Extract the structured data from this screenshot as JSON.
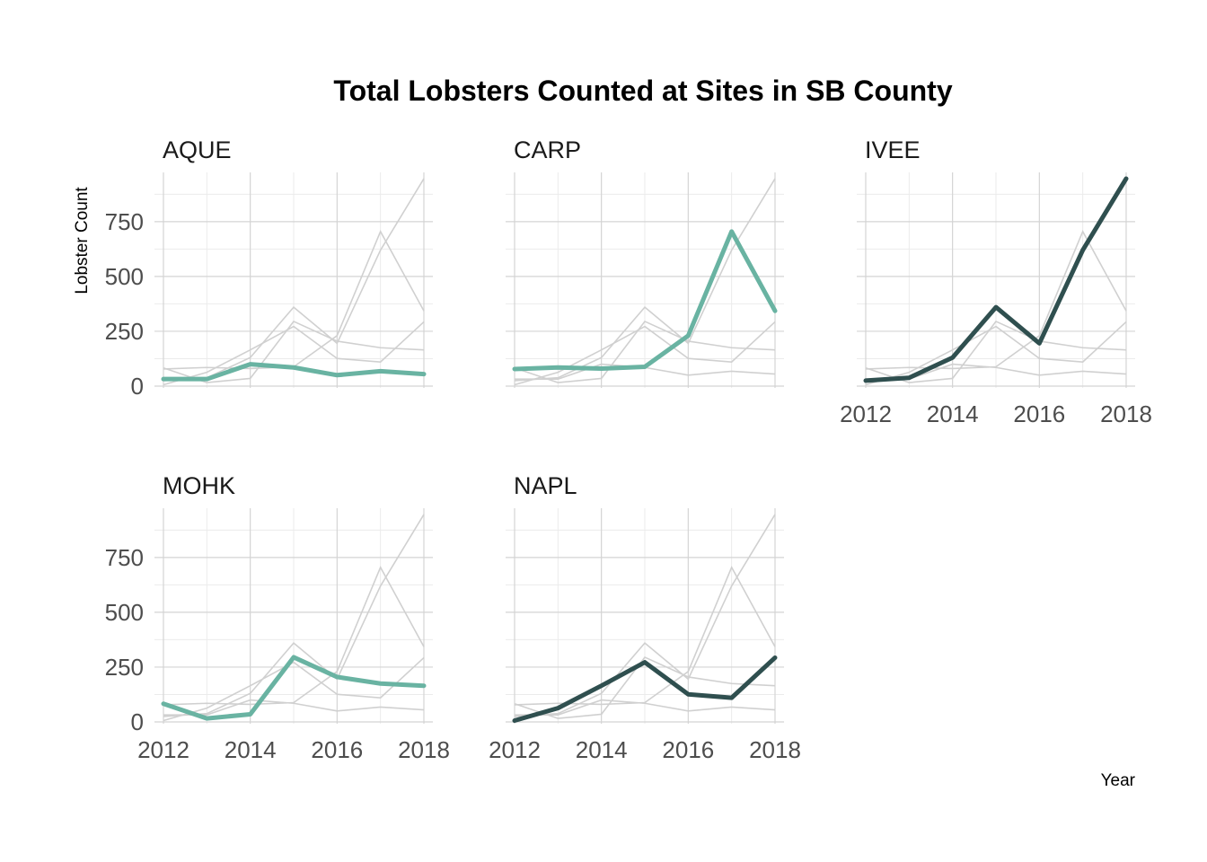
{
  "chart_data": {
    "type": "line",
    "title": "Total Lobsters Counted at Sites in SB County",
    "xlabel": "Year",
    "ylabel": "Lobster Count",
    "x": [
      2012,
      2013,
      2014,
      2015,
      2016,
      2017,
      2018
    ],
    "xlim": [
      2012,
      2018
    ],
    "ylim": [
      0,
      950
    ],
    "x_ticks": [
      2012,
      2014,
      2016,
      2018
    ],
    "y_ticks": [
      0,
      250,
      500,
      750
    ],
    "grid": true,
    "layout": "facet-wrap 3 columns",
    "series": [
      {
        "name": "AQUE",
        "values": [
          32,
          32,
          100,
          85,
          50,
          68,
          55
        ],
        "color": "#69B3A2"
      },
      {
        "name": "CARP",
        "values": [
          78,
          85,
          80,
          88,
          230,
          705,
          343
        ],
        "color": "#69B3A2"
      },
      {
        "name": "IVEE",
        "values": [
          25,
          38,
          130,
          360,
          195,
          620,
          946
        ],
        "color": "#2F4F4F"
      },
      {
        "name": "MOHK",
        "values": [
          83,
          16,
          35,
          295,
          205,
          175,
          165
        ],
        "color": "#69B3A2"
      },
      {
        "name": "NAPL",
        "values": [
          6,
          63,
          165,
          272,
          126,
          110,
          293
        ],
        "color": "#2F4F4F"
      }
    ],
    "background_series_color": "#d0d0d0"
  }
}
